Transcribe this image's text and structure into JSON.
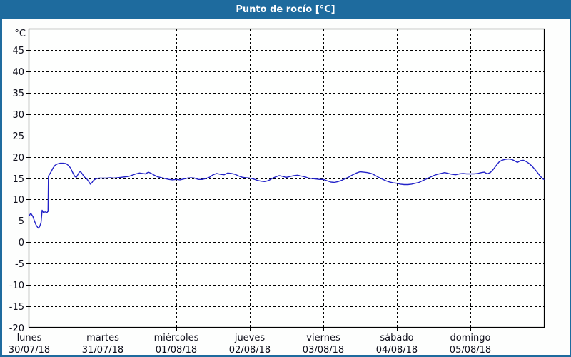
{
  "title_bar": {
    "title": "Punto de rocío [°C]"
  },
  "colors": {
    "header_bg": "#1E6B9E",
    "outer_border": "#1E6B9E",
    "background": "#FDFEFD",
    "plot_background": "#FEFFFE",
    "grid": "#000000",
    "axis_text": "#0E0E1A",
    "line": "#2222C8"
  },
  "chart_data": {
    "type": "line",
    "title": "Punto de rocío [°C]",
    "xlabel": "",
    "ylabel": "°C",
    "ylim": [
      -20,
      50
    ],
    "yticks": [
      45,
      40,
      35,
      30,
      25,
      20,
      15,
      10,
      5,
      0,
      -5,
      -10,
      -15,
      -20
    ],
    "grid": "dashed",
    "legend_position": "none",
    "x_days": [
      {
        "name": "lunes",
        "date": "30/07/18"
      },
      {
        "name": "martes",
        "date": "31/07/18"
      },
      {
        "name": "miércoles",
        "date": "01/08/18"
      },
      {
        "name": "jueves",
        "date": "02/08/18"
      },
      {
        "name": "viernes",
        "date": "03/08/18"
      },
      {
        "name": "sábado",
        "date": "04/08/18"
      },
      {
        "name": "domingo",
        "date": "05/08/18"
      }
    ],
    "series": [
      {
        "name": "Punto de rocío",
        "color": "#2222C8",
        "x_unit": "days_from_monday_00h",
        "points": [
          [
            0.0,
            6.2
          ],
          [
            0.02,
            6.8
          ],
          [
            0.05,
            6.0
          ],
          [
            0.07,
            5.0
          ],
          [
            0.09,
            4.1
          ],
          [
            0.12,
            3.3
          ],
          [
            0.14,
            3.6
          ],
          [
            0.16,
            4.6
          ],
          [
            0.175,
            7.5
          ],
          [
            0.19,
            7.0
          ],
          [
            0.22,
            7.1
          ],
          [
            0.24,
            6.9
          ],
          [
            0.25,
            7.2
          ],
          [
            0.255,
            7.2
          ],
          [
            0.26,
            15.5
          ],
          [
            0.28,
            16.0
          ],
          [
            0.3,
            16.6
          ],
          [
            0.32,
            17.3
          ],
          [
            0.35,
            18.0
          ],
          [
            0.38,
            18.3
          ],
          [
            0.42,
            18.5
          ],
          [
            0.46,
            18.5
          ],
          [
            0.5,
            18.4
          ],
          [
            0.53,
            18.0
          ],
          [
            0.56,
            17.4
          ],
          [
            0.58,
            16.7
          ],
          [
            0.6,
            16.0
          ],
          [
            0.62,
            15.4
          ],
          [
            0.64,
            15.2
          ],
          [
            0.66,
            15.8
          ],
          [
            0.68,
            16.4
          ],
          [
            0.7,
            16.5
          ],
          [
            0.72,
            16.0
          ],
          [
            0.74,
            15.5
          ],
          [
            0.76,
            15.1
          ],
          [
            0.78,
            14.9
          ],
          [
            0.8,
            14.4
          ],
          [
            0.82,
            13.9
          ],
          [
            0.83,
            13.6
          ],
          [
            0.85,
            13.9
          ],
          [
            0.87,
            14.4
          ],
          [
            0.89,
            14.7
          ],
          [
            0.92,
            14.9
          ],
          [
            0.95,
            15.0
          ],
          [
            1.0,
            15.0
          ],
          [
            1.05,
            15.0
          ],
          [
            1.1,
            15.1
          ],
          [
            1.15,
            15.0
          ],
          [
            1.2,
            15.1
          ],
          [
            1.25,
            15.2
          ],
          [
            1.3,
            15.3
          ],
          [
            1.35,
            15.4
          ],
          [
            1.4,
            15.7
          ],
          [
            1.45,
            16.0
          ],
          [
            1.5,
            16.2
          ],
          [
            1.54,
            16.1
          ],
          [
            1.58,
            16.0
          ],
          [
            1.62,
            16.4
          ],
          [
            1.66,
            16.1
          ],
          [
            1.7,
            15.7
          ],
          [
            1.75,
            15.3
          ],
          [
            1.8,
            15.1
          ],
          [
            1.85,
            14.9
          ],
          [
            1.9,
            14.7
          ],
          [
            1.95,
            14.6
          ],
          [
            2.0,
            14.7
          ],
          [
            2.05,
            14.6
          ],
          [
            2.1,
            14.8
          ],
          [
            2.15,
            15.0
          ],
          [
            2.2,
            15.1
          ],
          [
            2.25,
            15.0
          ],
          [
            2.3,
            14.7
          ],
          [
            2.35,
            14.7
          ],
          [
            2.4,
            14.9
          ],
          [
            2.45,
            15.2
          ],
          [
            2.5,
            15.8
          ],
          [
            2.55,
            16.1
          ],
          [
            2.6,
            15.9
          ],
          [
            2.65,
            15.8
          ],
          [
            2.7,
            16.2
          ],
          [
            2.75,
            16.1
          ],
          [
            2.8,
            15.9
          ],
          [
            2.85,
            15.5
          ],
          [
            2.9,
            15.2
          ],
          [
            2.95,
            15.1
          ],
          [
            3.0,
            15.0
          ],
          [
            3.05,
            14.8
          ],
          [
            3.1,
            14.5
          ],
          [
            3.15,
            14.3
          ],
          [
            3.2,
            14.2
          ],
          [
            3.25,
            14.4
          ],
          [
            3.3,
            14.9
          ],
          [
            3.35,
            15.3
          ],
          [
            3.4,
            15.6
          ],
          [
            3.45,
            15.4
          ],
          [
            3.5,
            15.2
          ],
          [
            3.55,
            15.4
          ],
          [
            3.6,
            15.6
          ],
          [
            3.65,
            15.7
          ],
          [
            3.7,
            15.5
          ],
          [
            3.75,
            15.3
          ],
          [
            3.8,
            15.0
          ],
          [
            3.85,
            14.9
          ],
          [
            3.9,
            14.8
          ],
          [
            3.95,
            14.7
          ],
          [
            4.0,
            14.7
          ],
          [
            4.05,
            14.4
          ],
          [
            4.1,
            14.1
          ],
          [
            4.15,
            14.0
          ],
          [
            4.2,
            14.2
          ],
          [
            4.25,
            14.5
          ],
          [
            4.3,
            14.9
          ],
          [
            4.35,
            15.3
          ],
          [
            4.4,
            15.8
          ],
          [
            4.45,
            16.2
          ],
          [
            4.5,
            16.5
          ],
          [
            4.55,
            16.4
          ],
          [
            4.6,
            16.3
          ],
          [
            4.65,
            16.1
          ],
          [
            4.7,
            15.7
          ],
          [
            4.75,
            15.2
          ],
          [
            4.8,
            14.8
          ],
          [
            4.85,
            14.4
          ],
          [
            4.9,
            14.1
          ],
          [
            4.95,
            13.9
          ],
          [
            5.0,
            13.8
          ],
          [
            5.05,
            13.6
          ],
          [
            5.1,
            13.5
          ],
          [
            5.15,
            13.5
          ],
          [
            5.2,
            13.6
          ],
          [
            5.25,
            13.8
          ],
          [
            5.3,
            14.0
          ],
          [
            5.35,
            14.4
          ],
          [
            5.4,
            14.8
          ],
          [
            5.45,
            15.2
          ],
          [
            5.5,
            15.6
          ],
          [
            5.55,
            15.9
          ],
          [
            5.6,
            16.1
          ],
          [
            5.65,
            16.3
          ],
          [
            5.7,
            16.1
          ],
          [
            5.75,
            15.9
          ],
          [
            5.8,
            15.8
          ],
          [
            5.85,
            16.0
          ],
          [
            5.9,
            16.1
          ],
          [
            5.95,
            16.0
          ],
          [
            6.0,
            16.0
          ],
          [
            6.05,
            16.0
          ],
          [
            6.1,
            16.1
          ],
          [
            6.15,
            16.3
          ],
          [
            6.19,
            16.4
          ],
          [
            6.23,
            16.0
          ],
          [
            6.27,
            16.3
          ],
          [
            6.31,
            17.0
          ],
          [
            6.35,
            17.9
          ],
          [
            6.39,
            18.8
          ],
          [
            6.43,
            19.2
          ],
          [
            6.47,
            19.4
          ],
          [
            6.52,
            19.5
          ],
          [
            6.56,
            19.4
          ],
          [
            6.6,
            19.1
          ],
          [
            6.64,
            18.7
          ],
          [
            6.68,
            19.1
          ],
          [
            6.72,
            19.2
          ],
          [
            6.76,
            18.9
          ],
          [
            6.8,
            18.4
          ],
          [
            6.84,
            17.8
          ],
          [
            6.87,
            17.2
          ],
          [
            6.9,
            16.6
          ],
          [
            6.93,
            15.9
          ],
          [
            6.96,
            15.3
          ],
          [
            6.98,
            14.9
          ],
          [
            7.0,
            14.7
          ]
        ]
      }
    ]
  }
}
